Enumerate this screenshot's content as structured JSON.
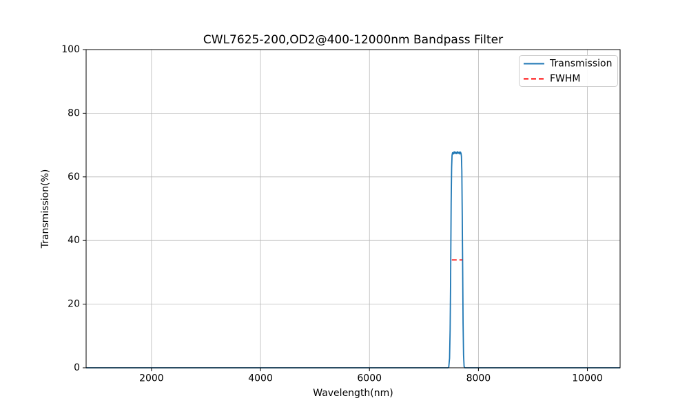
{
  "chart_data": {
    "type": "line",
    "title": "CWL7625-200,OD2@400-12000nm Bandpass Filter",
    "xlabel": "Wavelength(nm)",
    "ylabel": "Transmission(%)",
    "xlim": [
      800,
      10600
    ],
    "ylim": [
      0,
      100
    ],
    "x_ticks": [
      2000,
      4000,
      6000,
      8000,
      10000
    ],
    "y_ticks": [
      0,
      20,
      40,
      60,
      80,
      100
    ],
    "grid": true,
    "grid_color": "#b8b8b8",
    "legend": {
      "position": "upper right",
      "entries": [
        "Transmission",
        "FWHM"
      ]
    },
    "series": [
      {
        "name": "Transmission",
        "color": "#1f77b4",
        "style": "solid",
        "points": [
          [
            800,
            0
          ],
          [
            7000,
            0
          ],
          [
            7440,
            0
          ],
          [
            7455,
            0.2
          ],
          [
            7470,
            3
          ],
          [
            7480,
            12
          ],
          [
            7490,
            30
          ],
          [
            7500,
            52
          ],
          [
            7508,
            63
          ],
          [
            7516,
            66.8
          ],
          [
            7525,
            67.6
          ],
          [
            7540,
            67.2
          ],
          [
            7555,
            67.9
          ],
          [
            7570,
            67.3
          ],
          [
            7585,
            67.8
          ],
          [
            7600,
            67.3
          ],
          [
            7615,
            67.9
          ],
          [
            7630,
            67.4
          ],
          [
            7645,
            67.8
          ],
          [
            7658,
            67.2
          ],
          [
            7670,
            67.8
          ],
          [
            7680,
            67.4
          ],
          [
            7688,
            66.5
          ],
          [
            7695,
            62
          ],
          [
            7702,
            50
          ],
          [
            7710,
            32
          ],
          [
            7718,
            14
          ],
          [
            7727,
            4
          ],
          [
            7737,
            0.4
          ],
          [
            7750,
            0
          ],
          [
            8000,
            0
          ],
          [
            10600,
            0
          ]
        ]
      },
      {
        "name": "FWHM",
        "color": "#ff0000",
        "style": "dashed",
        "points": [
          [
            7512,
            33.9
          ],
          [
            7705,
            33.9
          ]
        ]
      }
    ]
  }
}
